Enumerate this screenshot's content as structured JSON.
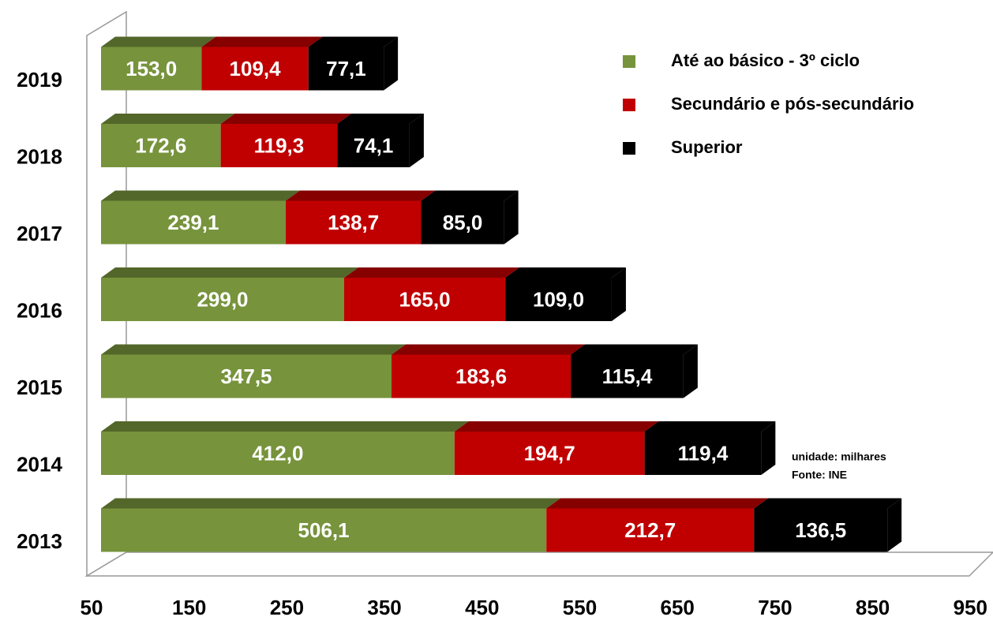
{
  "chart_data": {
    "type": "bar",
    "orientation": "horizontal",
    "stacked": true,
    "categories": [
      "2013",
      "2014",
      "2015",
      "2016",
      "2017",
      "2018",
      "2019"
    ],
    "series": [
      {
        "name": "Até ao básico - 3º ciclo",
        "color": "#77933c",
        "values": [
          506.1,
          412.0,
          347.5,
          299.0,
          239.1,
          172.6,
          153.0
        ],
        "value_labels": [
          "506,1",
          "412,0",
          "347,5",
          "299,0",
          "239,1",
          "172,6",
          "153,0"
        ]
      },
      {
        "name": "Secundário e pós-secundário",
        "color": "#c00000",
        "values": [
          212.7,
          194.7,
          183.6,
          165.0,
          138.7,
          119.3,
          109.4
        ],
        "value_labels": [
          "212,7",
          "194,7",
          "183,6",
          "165,0",
          "138,7",
          "119,3",
          "109,4"
        ]
      },
      {
        "name": "Superior",
        "color": "#000000",
        "values": [
          136.5,
          119.4,
          115.4,
          109.0,
          85.0,
          74.1,
          77.1
        ],
        "value_labels": [
          "136,5",
          "119,4",
          "115,4",
          "109,0",
          "85,0",
          "74,1",
          "77,1"
        ]
      }
    ],
    "xlim": [
      50,
      950
    ],
    "xticks": [
      50,
      150,
      250,
      350,
      450,
      550,
      650,
      750,
      850,
      950
    ],
    "legend": "top-right",
    "annotations": [
      "unidade: milhares",
      "Fonte: INE"
    ]
  }
}
